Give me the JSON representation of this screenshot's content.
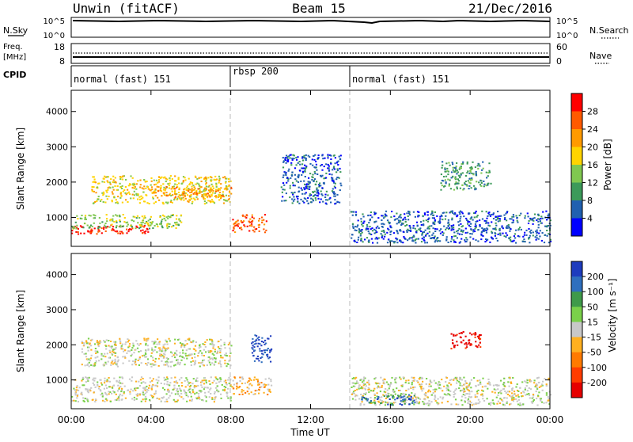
{
  "header": {
    "title": "Unwin (fitACF)",
    "beam": "Beam 15",
    "date": "21/Dec/2016"
  },
  "top_panels": {
    "nsky_label": "N.Sky",
    "nsky_ticks": [
      "10^5",
      "10^0"
    ],
    "nsearch_label": "N.Search",
    "nsearch_ticks": [
      "10^5",
      "10^0"
    ],
    "freq_label_line1": "Freq.",
    "freq_label_line2": "[MHz]",
    "freq_ticks": [
      "18",
      "8"
    ],
    "nave_label": "Nave",
    "nave_ticks": [
      "60",
      "0"
    ],
    "cpid_label": "CPID",
    "cpid_segments": [
      {
        "label": "normal (fast) 151",
        "start_hour": 0,
        "end_hour": 8
      },
      {
        "label": "rbsp 200",
        "start_hour": 8,
        "end_hour": 14
      },
      {
        "label": "normal (fast) 151",
        "start_hour": 14,
        "end_hour": 24
      }
    ]
  },
  "chart_data": [
    {
      "type": "heatmap",
      "title": "",
      "xlabel": "",
      "ylabel": "Slant Range [km]",
      "x_ticks": [
        "00:00",
        "04:00",
        "08:00",
        "12:00",
        "16:00",
        "20:00",
        "00:00"
      ],
      "y_ticks": [
        "1000",
        "2000",
        "3000",
        "4000"
      ],
      "xlim_hours": [
        0,
        24
      ],
      "ylim_km": [
        180,
        4600
      ],
      "colorbar": {
        "label": "Power [dB]",
        "ticks": [
          "28",
          "24",
          "20",
          "16",
          "12",
          "8",
          "4"
        ],
        "colors": [
          "#ff0000",
          "#ff5a00",
          "#ff9a00",
          "#ffd400",
          "#80c850",
          "#3c9a5a",
          "#2060b0",
          "#0000ff"
        ]
      },
      "features": [
        {
          "start_hour": 0.0,
          "end_hour": 4.0,
          "range_km": [
            550,
            800
          ],
          "level": 0
        },
        {
          "start_hour": 0.0,
          "end_hour": 5.5,
          "range_km": [
            700,
            1100
          ],
          "level": 4
        },
        {
          "start_hour": 1.0,
          "end_hour": 8.0,
          "range_km": [
            1400,
            2200
          ],
          "level": 3
        },
        {
          "start_hour": 4.0,
          "end_hour": 8.0,
          "range_km": [
            1600,
            1900
          ],
          "level": 2
        },
        {
          "start_hour": 8.0,
          "end_hour": 9.8,
          "range_km": [
            600,
            1100
          ],
          "level": 1
        },
        {
          "start_hour": 10.5,
          "end_hour": 13.5,
          "range_km": [
            1400,
            2800
          ],
          "level": 6
        },
        {
          "start_hour": 14.0,
          "end_hour": 24.0,
          "range_km": [
            300,
            1200
          ],
          "level": 6
        },
        {
          "start_hour": 18.5,
          "end_hour": 21.0,
          "range_km": [
            1800,
            2600
          ],
          "level": 5
        }
      ]
    },
    {
      "type": "heatmap",
      "title": "",
      "xlabel": "Time UT",
      "ylabel": "Slant Range [km]",
      "x_ticks": [
        "00:00",
        "04:00",
        "08:00",
        "12:00",
        "16:00",
        "20:00",
        "00:00"
      ],
      "y_ticks": [
        "1000",
        "2000",
        "3000",
        "4000"
      ],
      "xlim_hours": [
        0,
        24
      ],
      "ylim_km": [
        180,
        4600
      ],
      "colorbar": {
        "label": "Velocity [m s⁻¹]",
        "ticks": [
          "200",
          "100",
          "50",
          "15",
          "-15",
          "-50",
          "-100",
          "-200"
        ],
        "colors": [
          "#1e3cbe",
          "#2f6fbe",
          "#3f9a4a",
          "#7ad04a",
          "#c8c8c8",
          "#ffb020",
          "#ff7a00",
          "#ff3c00",
          "#e60000"
        ]
      },
      "features": [
        {
          "start_hour": 0.0,
          "end_hour": 8.0,
          "range_km": [
            400,
            1100
          ],
          "level": 4
        },
        {
          "start_hour": 0.5,
          "end_hour": 8.0,
          "range_km": [
            1400,
            2200
          ],
          "level": 4
        },
        {
          "start_hour": 8.0,
          "end_hour": 10.0,
          "range_km": [
            600,
            1100
          ],
          "level": 5
        },
        {
          "start_hour": 9.0,
          "end_hour": 10.0,
          "range_km": [
            1500,
            2300
          ],
          "level": 0
        },
        {
          "start_hour": 14.0,
          "end_hour": 24.0,
          "range_km": [
            300,
            1100
          ],
          "level": 4
        },
        {
          "start_hour": 14.5,
          "end_hour": 17.2,
          "range_km": [
            300,
            600
          ],
          "level": 1
        },
        {
          "start_hour": 19.0,
          "end_hour": 20.5,
          "range_km": [
            1900,
            2400
          ],
          "level": 8
        }
      ]
    }
  ]
}
